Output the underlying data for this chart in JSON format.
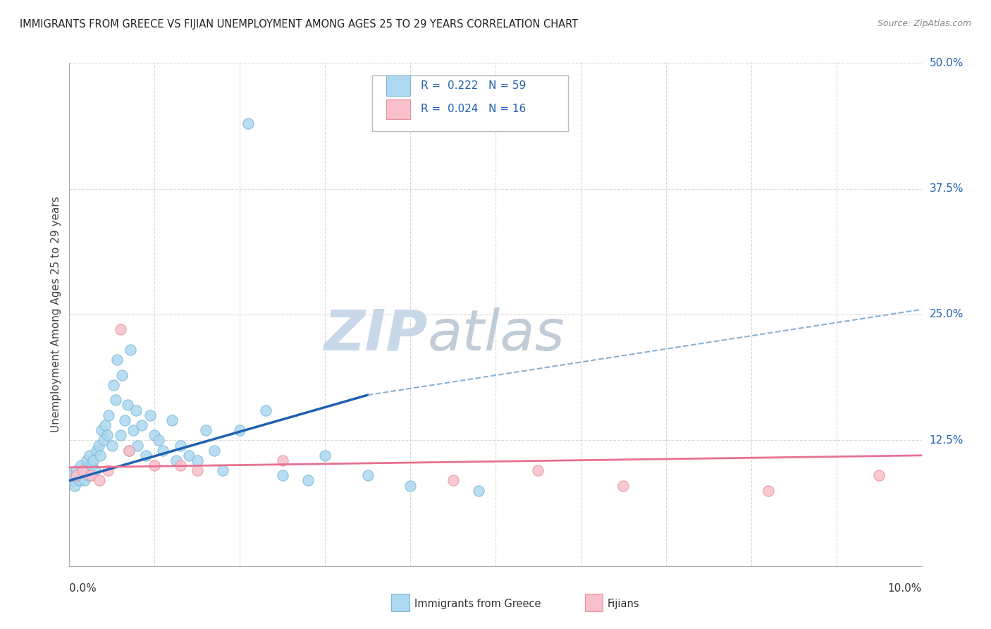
{
  "title": "IMMIGRANTS FROM GREECE VS FIJIAN UNEMPLOYMENT AMONG AGES 25 TO 29 YEARS CORRELATION CHART",
  "source": "Source: ZipAtlas.com",
  "ylabel": "Unemployment Among Ages 25 to 29 years",
  "xlim": [
    0.0,
    10.0
  ],
  "ylim": [
    0.0,
    50.0
  ],
  "yticks": [
    0.0,
    12.5,
    25.0,
    37.5,
    50.0
  ],
  "ytick_labels": [
    "",
    "12.5%",
    "25.0%",
    "37.5%",
    "50.0%"
  ],
  "legend_r1": "R =  0.222",
  "legend_n1": "N = 59",
  "legend_r2": "R =  0.024",
  "legend_n2": "N = 16",
  "color_blue": "#ADD8F0",
  "color_blue_edge": "#7BB8D8",
  "color_pink": "#F9C0CB",
  "color_pink_edge": "#E890A0",
  "color_trendline_blue": "#2060B0",
  "color_trendline_pink": "#E87090",
  "color_trendline_dashed": "#8AB0D0",
  "watermark_color": "#C8D8E8",
  "grid_color": "#D8D8D8",
  "blue_points_x": [
    0.02,
    0.04,
    0.06,
    0.08,
    0.1,
    0.12,
    0.14,
    0.16,
    0.18,
    0.2,
    0.22,
    0.24,
    0.26,
    0.28,
    0.3,
    0.32,
    0.34,
    0.36,
    0.38,
    0.4,
    0.42,
    0.44,
    0.46,
    0.5,
    0.52,
    0.54,
    0.56,
    0.6,
    0.62,
    0.65,
    0.68,
    0.7,
    0.72,
    0.75,
    0.78,
    0.8,
    0.85,
    0.9,
    0.95,
    1.0,
    1.05,
    1.1,
    1.2,
    1.25,
    1.3,
    1.4,
    1.5,
    1.6,
    1.7,
    1.8,
    2.0,
    2.1,
    2.3,
    2.5,
    2.8,
    3.0,
    3.5,
    4.0,
    4.8
  ],
  "blue_points_y": [
    9.0,
    8.5,
    8.0,
    9.5,
    9.0,
    8.5,
    10.0,
    9.5,
    8.5,
    10.5,
    9.0,
    11.0,
    10.0,
    10.5,
    9.5,
    11.5,
    12.0,
    11.0,
    13.5,
    12.5,
    14.0,
    13.0,
    15.0,
    12.0,
    18.0,
    16.5,
    20.5,
    13.0,
    19.0,
    14.5,
    16.0,
    11.5,
    21.5,
    13.5,
    15.5,
    12.0,
    14.0,
    11.0,
    15.0,
    13.0,
    12.5,
    11.5,
    14.5,
    10.5,
    12.0,
    11.0,
    10.5,
    13.5,
    11.5,
    9.5,
    13.5,
    44.0,
    15.5,
    9.0,
    8.5,
    11.0,
    9.0,
    8.0,
    7.5
  ],
  "pink_points_x": [
    0.08,
    0.15,
    0.25,
    0.35,
    0.45,
    0.6,
    0.7,
    1.0,
    1.3,
    1.5,
    2.5,
    4.5,
    5.5,
    6.5,
    8.2,
    9.5
  ],
  "pink_points_y": [
    9.0,
    9.5,
    9.0,
    8.5,
    9.5,
    23.5,
    11.5,
    10.0,
    10.0,
    9.5,
    10.5,
    8.5,
    9.5,
    8.0,
    7.5,
    9.0
  ],
  "blue_trend_x": [
    0.0,
    3.5
  ],
  "blue_trend_y": [
    8.5,
    17.0
  ],
  "dashed_trend_x": [
    3.5,
    10.0
  ],
  "dashed_trend_y": [
    17.0,
    25.5
  ],
  "pink_trend_x": [
    0.0,
    10.0
  ],
  "pink_trend_y": [
    9.8,
    11.0
  ]
}
